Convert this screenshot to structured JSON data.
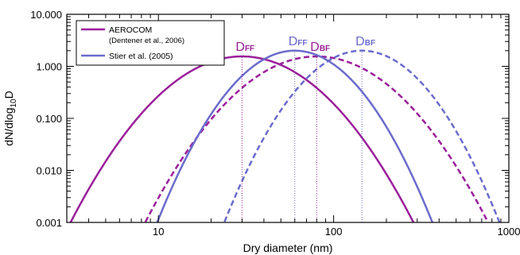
{
  "chart_data": {
    "type": "line",
    "xlabel": "Dry diameter (nm)",
    "ylabel_main": "dN/dlog",
    "ylabel_sub": "10",
    "ylabel_tail": "D",
    "x_scale": "log",
    "y_scale": "log",
    "xlim": [
      3,
      1000
    ],
    "ylim": [
      0.001,
      10
    ],
    "x_ticks": [
      10,
      100,
      1000
    ],
    "x_tick_labels": [
      "10",
      "100",
      "1000"
    ],
    "y_ticks": [
      0.001,
      0.01,
      0.1,
      1,
      10
    ],
    "y_tick_labels": [
      "0.001",
      "0.010",
      "0.100",
      "1.000",
      "10.000"
    ],
    "legend": {
      "placement": "top-left",
      "entries": [
        {
          "label": "AEROCOM",
          "sublabel": "(Dentener et al., 2006)",
          "color": "#9a1f9a"
        },
        {
          "label": "Stier et al. (2005)",
          "sublabel": "",
          "color": "#6b6bcc"
        }
      ]
    },
    "series": [
      {
        "group": "AEROCOM",
        "mode": "fine fraction",
        "color": "#9a1f9a",
        "style": "solid",
        "median_nm": 30,
        "sigma_g": 1.8,
        "peak": 1.55
      },
      {
        "group": "AEROCOM",
        "mode": "bulk fraction",
        "color": "#9a1f9a",
        "style": "dashed",
        "median_nm": 80,
        "sigma_g": 1.8,
        "peak": 1.55
      },
      {
        "group": "Stier et al. (2005)",
        "mode": "fine fraction",
        "color": "#6b6bcc",
        "style": "solid",
        "median_nm": 60,
        "sigma_g": 1.59,
        "peak": 2.0
      },
      {
        "group": "Stier et al. (2005)",
        "mode": "bulk fraction",
        "color": "#6b6bcc",
        "style": "dashed",
        "median_nm": 145,
        "sigma_g": 1.59,
        "peak": 2.0
      }
    ],
    "annotations": [
      {
        "main": "D",
        "sub": "FF",
        "at_x": 30,
        "color": "#9a1f9a"
      },
      {
        "main": "D",
        "sub": "FF",
        "at_x": 60,
        "color": "#6b6bcc"
      },
      {
        "main": "D",
        "sub": "BF",
        "at_x": 80,
        "color": "#9a1f9a"
      },
      {
        "main": "D",
        "sub": "BF",
        "at_x": 145,
        "color": "#6b6bcc"
      }
    ],
    "grid": false
  }
}
